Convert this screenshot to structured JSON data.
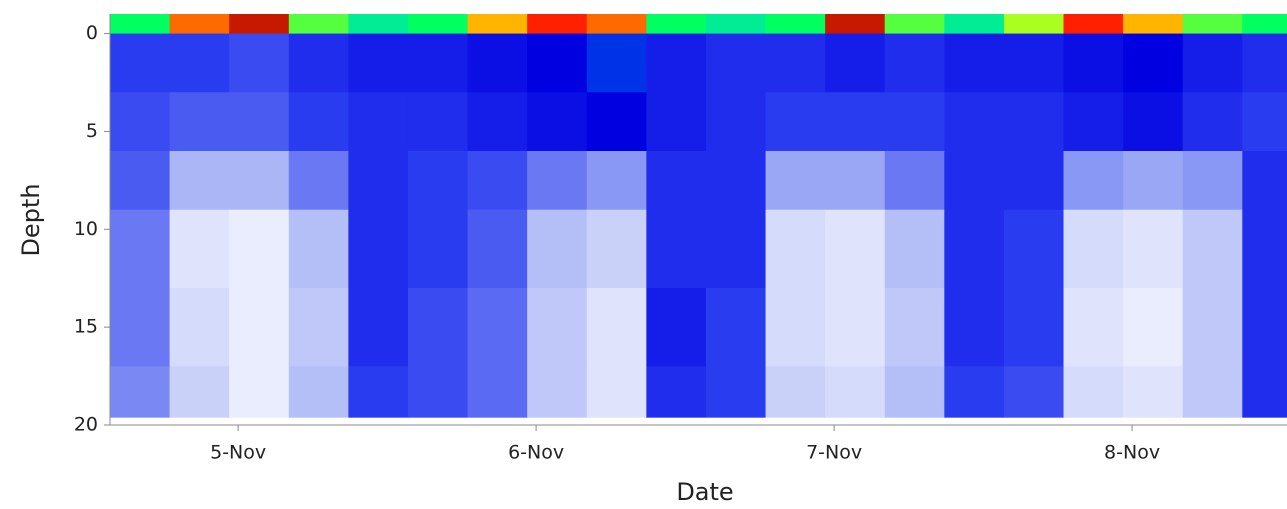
{
  "chart_data": {
    "type": "heatmap",
    "x_label": "Date",
    "y_label": "Depth",
    "xlim": [
      4.57,
      8.52
    ],
    "xticks": [
      {
        "value": 5,
        "label": "5-Nov"
      },
      {
        "value": 6,
        "label": "6-Nov"
      },
      {
        "value": 7,
        "label": "7-Nov"
      },
      {
        "value": 8,
        "label": "8-Nov"
      }
    ],
    "ylim": [
      -1,
      20
    ],
    "y_inverted": true,
    "yticks": [
      0,
      5,
      10,
      15,
      20
    ],
    "x_edges": [
      4.57,
      4.77,
      4.97,
      5.17,
      5.37,
      5.57,
      5.77,
      5.97,
      6.17,
      6.37,
      6.57,
      6.77,
      6.97,
      7.17,
      7.37,
      7.57,
      7.77,
      7.97,
      8.17,
      8.37,
      8.52
    ],
    "y_edges": [
      -1,
      0,
      3,
      6,
      9,
      13,
      17,
      19.6
    ],
    "colorscale": [
      [
        0,
        "#ffffff"
      ],
      [
        0.4,
        "#aab6f6"
      ],
      [
        0.8,
        "#2a3cf0"
      ],
      [
        1.0,
        "#0000e0"
      ],
      [
        1.2,
        "#00c8ff"
      ],
      [
        1.5,
        "#00ff60"
      ],
      [
        1.8,
        "#ffff00"
      ],
      [
        2.1,
        "#ff2000"
      ],
      [
        2.5,
        "#200000"
      ]
    ],
    "values": [
      [
        1.5,
        2.0,
        2.2,
        1.6,
        1.4,
        1.5,
        1.9,
        2.1,
        2.0,
        1.5,
        1.4,
        1.5,
        2.2,
        1.6,
        1.4,
        1.7,
        2.1,
        1.9,
        1.6,
        1.5
      ],
      [
        0.8,
        0.8,
        0.75,
        0.85,
        0.9,
        0.9,
        0.95,
        1.0,
        1.05,
        0.9,
        0.85,
        0.85,
        0.9,
        0.85,
        0.9,
        0.9,
        0.95,
        1.0,
        0.9,
        0.85
      ],
      [
        0.75,
        0.7,
        0.7,
        0.8,
        0.85,
        0.85,
        0.9,
        0.95,
        1.0,
        0.9,
        0.85,
        0.8,
        0.8,
        0.8,
        0.85,
        0.85,
        0.9,
        0.95,
        0.85,
        0.8
      ],
      [
        0.7,
        0.4,
        0.4,
        0.6,
        0.85,
        0.8,
        0.75,
        0.6,
        0.5,
        0.85,
        0.85,
        0.45,
        0.45,
        0.6,
        0.85,
        0.85,
        0.5,
        0.45,
        0.5,
        0.85
      ],
      [
        0.6,
        0.15,
        0.1,
        0.35,
        0.85,
        0.8,
        0.7,
        0.35,
        0.25,
        0.85,
        0.85,
        0.2,
        0.15,
        0.35,
        0.85,
        0.8,
        0.2,
        0.15,
        0.3,
        0.85
      ],
      [
        0.6,
        0.2,
        0.1,
        0.3,
        0.85,
        0.75,
        0.65,
        0.3,
        0.15,
        0.9,
        0.8,
        0.2,
        0.15,
        0.3,
        0.85,
        0.8,
        0.15,
        0.1,
        0.3,
        0.85
      ],
      [
        0.55,
        0.25,
        0.1,
        0.35,
        0.8,
        0.75,
        0.65,
        0.3,
        0.15,
        0.85,
        0.8,
        0.25,
        0.2,
        0.35,
        0.8,
        0.75,
        0.2,
        0.15,
        0.3,
        0.85
      ]
    ]
  }
}
